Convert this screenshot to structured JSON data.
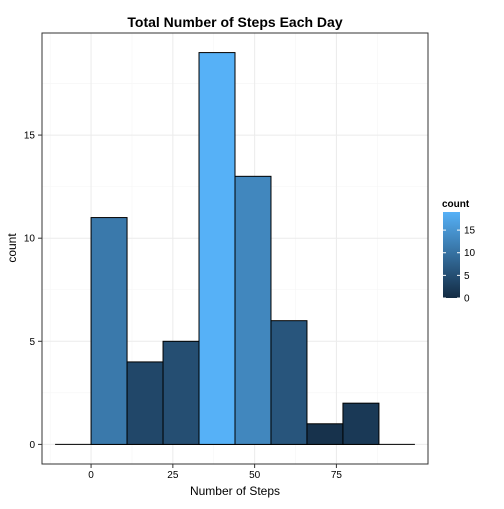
{
  "chart_data": {
    "type": "bar",
    "title": "Total Number of Steps Each Day",
    "xlabel": "Number of Steps",
    "ylabel": "count",
    "bins": [
      {
        "x_start": 0,
        "x_end": 11,
        "count": 11
      },
      {
        "x_start": 11,
        "x_end": 22,
        "count": 4
      },
      {
        "x_start": 22,
        "x_end": 33,
        "count": 5
      },
      {
        "x_start": 33,
        "x_end": 44,
        "count": 19
      },
      {
        "x_start": 44,
        "x_end": 55,
        "count": 13
      },
      {
        "x_start": 55,
        "x_end": 66,
        "count": 6
      },
      {
        "x_start": 66,
        "x_end": 77,
        "count": 1
      },
      {
        "x_start": 77,
        "x_end": 88,
        "count": 2
      }
    ],
    "baseline": {
      "x_from": -11,
      "x_to": 99
    },
    "xlim": [
      -15,
      103
    ],
    "ylim": [
      -0.95,
      19.95
    ],
    "x_ticks": [
      0,
      25,
      50,
      75
    ],
    "x_tick_labels": [
      "0",
      "25",
      "50",
      "75"
    ],
    "y_ticks": [
      0,
      5,
      10,
      15
    ],
    "y_tick_labels": [
      "0",
      "5",
      "10",
      "15"
    ],
    "grid": true,
    "legend": {
      "title": "count",
      "position": "right",
      "ticks": [
        0,
        5,
        10,
        15
      ],
      "tick_labels": [
        "0",
        "5",
        "10",
        "15"
      ],
      "range": [
        0,
        19
      ]
    },
    "colors": {
      "low": "#132B43",
      "high": "#56B1F7",
      "bar_outline": "#000000",
      "panel_border": "#333333",
      "grid_major": "#ebebeb",
      "grid_minor": "#f5f5f5"
    }
  }
}
